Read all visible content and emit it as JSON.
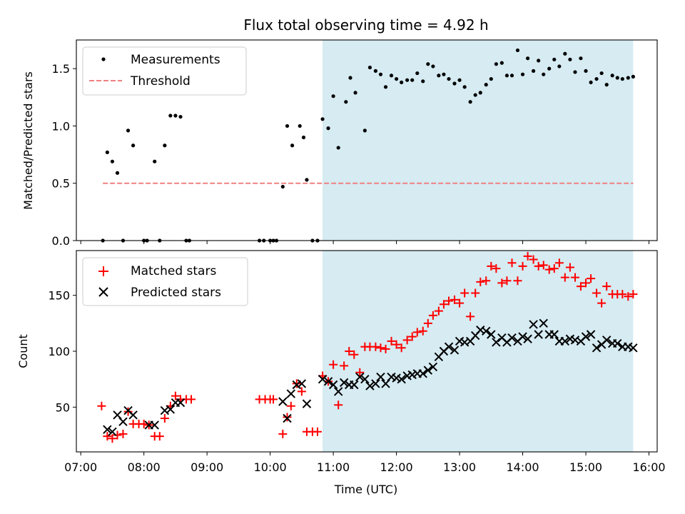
{
  "chart_data": [
    {
      "type": "scatter",
      "title": "Flux total observing time = 4.92 h",
      "xlabel": "",
      "ylabel": "Matched/Predicted stars",
      "xlim": [
        6.93,
        16.13
      ],
      "ylim": [
        0,
        1.75
      ],
      "x_ticks": [
        7,
        8,
        9,
        10,
        11,
        12,
        13,
        14,
        15,
        16
      ],
      "y_ticks": [
        0.0,
        0.5,
        1.0,
        1.5
      ],
      "y_tick_labels": [
        "0.0",
        "0.5",
        "1.0",
        "1.5"
      ],
      "shaded_x_range": [
        10.83,
        15.75
      ],
      "legend": {
        "position": "top-left",
        "entries": [
          "Measurements",
          "Threshold"
        ]
      },
      "threshold": {
        "name": "Threshold",
        "value": 0.5,
        "x_range": [
          7.35,
          15.75
        ],
        "color": "#f08080"
      },
      "series": [
        {
          "name": "Measurements",
          "color": "#000000",
          "x": [
            7.35,
            7.42,
            7.5,
            7.58,
            7.67,
            7.75,
            7.83,
            8.0,
            8.05,
            8.17,
            8.25,
            8.33,
            8.42,
            8.5,
            8.58,
            8.67,
            8.72,
            9.83,
            9.9,
            10.0,
            10.05,
            10.1,
            10.2,
            10.27,
            10.35,
            10.47,
            10.53,
            10.58,
            10.67,
            10.75,
            10.83,
            10.92,
            11.0,
            11.08,
            11.2,
            11.27,
            11.35,
            11.5,
            11.58,
            11.67,
            11.75,
            11.83,
            11.92,
            12.0,
            12.08,
            12.17,
            12.25,
            12.33,
            12.42,
            12.5,
            12.58,
            12.67,
            12.75,
            12.83,
            12.92,
            13.0,
            13.08,
            13.17,
            13.25,
            13.33,
            13.42,
            13.5,
            13.58,
            13.67,
            13.75,
            13.83,
            13.92,
            14.0,
            14.08,
            14.17,
            14.25,
            14.33,
            14.42,
            14.5,
            14.58,
            14.67,
            14.75,
            14.83,
            14.92,
            15.0,
            15.08,
            15.17,
            15.25,
            15.33,
            15.42,
            15.5,
            15.58,
            15.67,
            15.75
          ],
          "y": [
            0.0,
            0.77,
            0.69,
            0.59,
            0.0,
            0.96,
            0.83,
            0.0,
            0.0,
            0.69,
            0.0,
            0.83,
            1.09,
            1.09,
            1.08,
            0.0,
            0.0,
            0.0,
            0.0,
            0.0,
            0.0,
            0.0,
            0.47,
            1.0,
            0.83,
            1.0,
            0.9,
            0.53,
            0.0,
            0.0,
            1.06,
            0.98,
            1.26,
            0.81,
            1.21,
            1.42,
            1.29,
            0.96,
            1.51,
            1.48,
            1.45,
            1.34,
            1.44,
            1.41,
            1.38,
            1.4,
            1.4,
            1.46,
            1.39,
            1.54,
            1.52,
            1.44,
            1.45,
            1.41,
            1.37,
            1.4,
            1.34,
            1.21,
            1.27,
            1.29,
            1.36,
            1.41,
            1.54,
            1.55,
            1.44,
            1.44,
            1.66,
            1.45,
            1.59,
            1.48,
            1.57,
            1.45,
            1.5,
            1.58,
            1.52,
            1.63,
            1.58,
            1.47,
            1.59,
            1.48,
            1.38,
            1.41,
            1.46,
            1.36,
            1.44,
            1.42,
            1.41,
            1.42,
            1.43
          ]
        }
      ]
    },
    {
      "type": "scatter",
      "title": "",
      "xlabel": "Time (UTC)",
      "ylabel": "Count",
      "xlim": [
        6.93,
        16.13
      ],
      "ylim": [
        10,
        190
      ],
      "x_ticks": [
        7,
        8,
        9,
        10,
        11,
        12,
        13,
        14,
        15,
        16
      ],
      "x_tick_labels": [
        "07:00",
        "08:00",
        "09:00",
        "10:00",
        "11:00",
        "12:00",
        "13:00",
        "14:00",
        "15:00",
        "16:00"
      ],
      "y_ticks": [
        50,
        100,
        150
      ],
      "y_tick_labels": [
        "50",
        "100",
        "150"
      ],
      "shaded_x_range": [
        10.83,
        15.75
      ],
      "legend": {
        "position": "top-left",
        "entries": [
          "Matched stars",
          "Predicted stars"
        ]
      },
      "series": [
        {
          "name": "Matched stars",
          "marker": "plus",
          "color": "#ff0000",
          "x": [
            7.33,
            7.42,
            7.5,
            7.58,
            7.67,
            7.75,
            7.83,
            7.92,
            8.0,
            8.08,
            8.17,
            8.25,
            8.33,
            8.42,
            8.5,
            8.58,
            8.67,
            8.75,
            9.83,
            9.92,
            10.0,
            10.05,
            10.2,
            10.27,
            10.33,
            10.42,
            10.5,
            10.58,
            10.67,
            10.75,
            10.83,
            10.92,
            11.0,
            11.08,
            11.17,
            11.25,
            11.33,
            11.42,
            11.5,
            11.58,
            11.67,
            11.75,
            11.83,
            11.92,
            12.0,
            12.08,
            12.17,
            12.25,
            12.33,
            12.42,
            12.5,
            12.58,
            12.67,
            12.75,
            12.83,
            12.92,
            13.0,
            13.08,
            13.17,
            13.25,
            13.33,
            13.42,
            13.5,
            13.58,
            13.67,
            13.75,
            13.83,
            13.92,
            14.0,
            14.08,
            14.17,
            14.25,
            14.33,
            14.42,
            14.5,
            14.58,
            14.67,
            14.75,
            14.83,
            14.92,
            15.0,
            15.08,
            15.17,
            15.25,
            15.33,
            15.42,
            15.5,
            15.58,
            15.67,
            15.75
          ],
          "y": [
            51,
            24,
            22,
            25,
            26,
            46,
            35,
            35,
            35,
            34,
            24,
            24,
            40,
            51,
            60,
            57,
            57,
            57,
            57,
            57,
            57,
            57,
            26,
            41,
            51,
            71,
            64,
            28,
            28,
            28,
            78,
            73,
            88,
            52,
            87,
            100,
            97,
            81,
            104,
            104,
            104,
            103,
            102,
            109,
            106,
            103,
            110,
            113,
            117,
            118,
            125,
            132,
            136,
            142,
            145,
            146,
            143,
            152,
            131,
            152,
            162,
            163,
            176,
            174,
            161,
            163,
            179,
            163,
            176,
            185,
            182,
            176,
            177,
            173,
            174,
            179,
            166,
            175,
            166,
            158,
            161,
            165,
            152,
            143,
            158,
            151,
            151,
            151,
            149,
            151
          ]
        },
        {
          "name": "Predicted stars",
          "marker": "x",
          "color": "#000000",
          "x": [
            7.42,
            7.5,
            7.58,
            7.67,
            7.75,
            7.83,
            8.08,
            8.17,
            8.33,
            8.42,
            8.5,
            8.58,
            10.2,
            10.27,
            10.33,
            10.42,
            10.5,
            10.58,
            10.83,
            10.92,
            11.0,
            11.08,
            11.17,
            11.25,
            11.33,
            11.42,
            11.5,
            11.58,
            11.67,
            11.75,
            11.83,
            11.92,
            12.0,
            12.08,
            12.17,
            12.25,
            12.33,
            12.42,
            12.5,
            12.58,
            12.67,
            12.75,
            12.83,
            12.92,
            13.0,
            13.08,
            13.17,
            13.25,
            13.33,
            13.42,
            13.5,
            13.58,
            13.67,
            13.75,
            13.83,
            13.92,
            14.0,
            14.08,
            14.17,
            14.25,
            14.33,
            14.42,
            14.5,
            14.58,
            14.67,
            14.75,
            14.83,
            14.92,
            15.0,
            15.08,
            15.17,
            15.25,
            15.33,
            15.42,
            15.5,
            15.58,
            15.67,
            15.75
          ],
          "y": [
            30,
            28,
            43,
            37,
            47,
            43,
            34,
            34,
            47,
            48,
            54,
            54,
            55,
            40,
            62,
            70,
            71,
            53,
            75,
            73,
            70,
            64,
            72,
            70,
            70,
            77,
            75,
            69,
            71,
            77,
            71,
            77,
            76,
            75,
            78,
            79,
            80,
            80,
            83,
            86,
            95,
            100,
            104,
            101,
            109,
            108,
            109,
            114,
            119,
            118,
            115,
            108,
            112,
            108,
            112,
            109,
            113,
            111,
            124,
            115,
            125,
            115,
            115,
            109,
            109,
            111,
            110,
            109,
            113,
            115,
            103,
            106,
            110,
            107,
            107,
            104,
            104,
            103
          ]
        }
      ]
    }
  ]
}
